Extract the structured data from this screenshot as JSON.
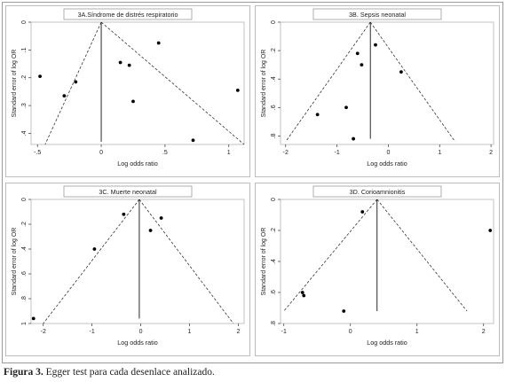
{
  "caption": {
    "label": "Figura 3.",
    "text": " Egger test para cada desenlace analizado."
  },
  "chart_data": [
    {
      "type": "scatter",
      "title": "3A.Síndrome de distrés respiratorio",
      "xlabel": "Log odds ratio",
      "ylabel": "Standard error of log OR",
      "xlim": [
        -0.55,
        1.12
      ],
      "ylim": [
        0,
        0.44
      ],
      "y_inverted": true,
      "xticks": [
        -0.5,
        0,
        0.5,
        1
      ],
      "xtick_labels": [
        "-.5",
        "0",
        ".5",
        "1"
      ],
      "yticks": [
        0,
        0.1,
        0.2,
        0.3,
        0.4
      ],
      "ytick_labels": [
        "0",
        ".1",
        ".2",
        ".3",
        ".4"
      ],
      "pooled": 0.0,
      "funnel_apex": 0.0,
      "funnel_base": [
        -0.44,
        1.12
      ],
      "funnel_base_se": 0.44,
      "vline_se_max": 0.43,
      "points": [
        {
          "x": -0.48,
          "y": 0.195
        },
        {
          "x": -0.29,
          "y": 0.265
        },
        {
          "x": -0.2,
          "y": 0.215
        },
        {
          "x": 0.15,
          "y": 0.145
        },
        {
          "x": 0.22,
          "y": 0.155
        },
        {
          "x": 0.25,
          "y": 0.285
        },
        {
          "x": 0.45,
          "y": 0.075
        },
        {
          "x": 0.72,
          "y": 0.425
        },
        {
          "x": 1.07,
          "y": 0.245
        }
      ]
    },
    {
      "type": "scatter",
      "title": "3B. Sepsis neonatal",
      "xlabel": "Log odds ratio",
      "ylabel": "Standard error of log OR",
      "xlim": [
        -2.1,
        2.05
      ],
      "ylim": [
        0,
        0.86
      ],
      "y_inverted": true,
      "xticks": [
        -2,
        -1,
        0,
        1,
        2
      ],
      "xtick_labels": [
        "-2",
        "-1",
        "0",
        "1",
        "2"
      ],
      "yticks": [
        0,
        0.2,
        0.4,
        0.6,
        0.8
      ],
      "ytick_labels": [
        "0",
        ".2",
        ".4",
        ".6",
        ".8"
      ],
      "pooled": -0.35,
      "funnel_apex": -0.35,
      "funnel_base": [
        -2.0,
        1.3
      ],
      "funnel_base_se": 0.84,
      "vline_se_max": 0.82,
      "points": [
        {
          "x": -1.38,
          "y": 0.65
        },
        {
          "x": -0.82,
          "y": 0.6
        },
        {
          "x": -0.68,
          "y": 0.82
        },
        {
          "x": -0.6,
          "y": 0.22
        },
        {
          "x": -0.52,
          "y": 0.3
        },
        {
          "x": -0.25,
          "y": 0.16
        },
        {
          "x": 0.25,
          "y": 0.35
        }
      ]
    },
    {
      "type": "scatter",
      "title": "3C. Muerte neonatal",
      "xlabel": "Log odds ratio",
      "ylabel": "Standard error of log OR",
      "xlim": [
        -2.25,
        2.12
      ],
      "ylim": [
        0,
        1.0
      ],
      "y_inverted": true,
      "xticks": [
        -2,
        -1,
        0,
        1,
        2
      ],
      "xtick_labels": [
        "-2",
        "-1",
        "0",
        "1",
        "2"
      ],
      "yticks": [
        0,
        0.2,
        0.4,
        0.6,
        0.8,
        1
      ],
      "ytick_labels": [
        "0",
        ".2",
        ".4",
        ".6",
        ".8",
        "1"
      ],
      "pooled": -0.03,
      "funnel_apex": -0.03,
      "funnel_base": [
        -2.0,
        1.9
      ],
      "funnel_base_se": 1.0,
      "vline_se_max": 0.96,
      "points": [
        {
          "x": -2.2,
          "y": 0.96
        },
        {
          "x": -0.95,
          "y": 0.4
        },
        {
          "x": -0.35,
          "y": 0.12
        },
        {
          "x": 0.2,
          "y": 0.25
        },
        {
          "x": 0.42,
          "y": 0.15
        }
      ]
    },
    {
      "type": "scatter",
      "title": "3D. Corioamnionitis",
      "xlabel": "Log odds ratio",
      "ylabel": "Standard error of log OR",
      "xlim": [
        -1.05,
        2.15
      ],
      "ylim": [
        0,
        0.8
      ],
      "y_inverted": true,
      "xticks": [
        -1,
        0,
        1,
        2
      ],
      "xtick_labels": [
        "-1",
        "0",
        "1",
        "2"
      ],
      "yticks": [
        0,
        0.2,
        0.4,
        0.6,
        0.8
      ],
      "ytick_labels": [
        "0",
        ".2",
        ".4",
        ".6",
        ".8"
      ],
      "pooled": 0.4,
      "funnel_apex": 0.4,
      "funnel_base": [
        -1.0,
        1.75
      ],
      "funnel_base_se": 0.72,
      "vline_se_max": 0.72,
      "points": [
        {
          "x": -0.72,
          "y": 0.6
        },
        {
          "x": -0.7,
          "y": 0.62
        },
        {
          "x": -0.1,
          "y": 0.72
        },
        {
          "x": 0.18,
          "y": 0.08
        },
        {
          "x": 2.1,
          "y": 0.2
        }
      ]
    }
  ]
}
